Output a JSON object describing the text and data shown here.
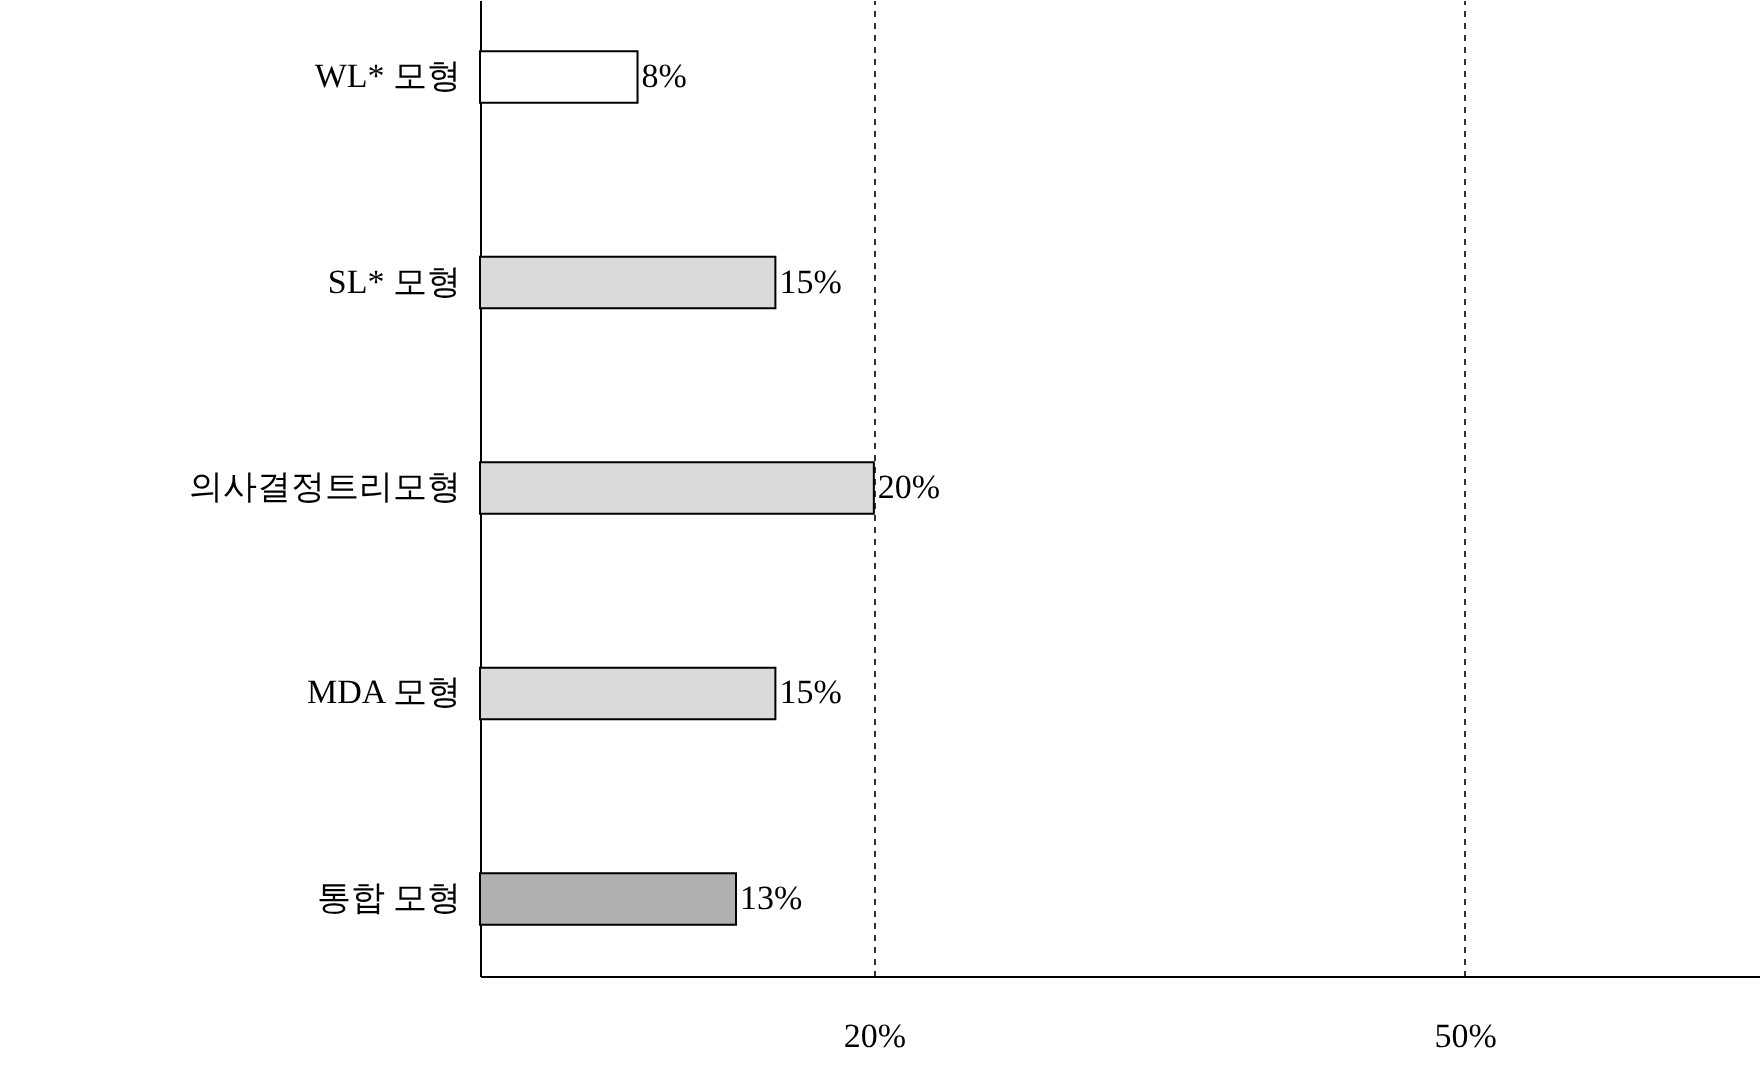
{
  "chart_data": {
    "type": "bar",
    "orientation": "horizontal",
    "categories": [
      "WL* 모형",
      "SL* 모형",
      "의사결정트리모형",
      "MDA 모형",
      "통합 모형"
    ],
    "values": [
      8,
      15,
      20,
      15,
      13
    ],
    "value_labels": [
      "8%",
      "15%",
      "20%",
      "15%",
      "13%"
    ],
    "colors": [
      "#ffffff",
      "#d9d9d9",
      "#d9d9d9",
      "#d9d9d9",
      "#b0b0b0"
    ],
    "xlim": [
      0,
      65
    ],
    "xticks": [
      {
        "value": 20,
        "label": "20%"
      },
      {
        "value": 50,
        "label": "50%"
      }
    ],
    "grid": "x"
  }
}
